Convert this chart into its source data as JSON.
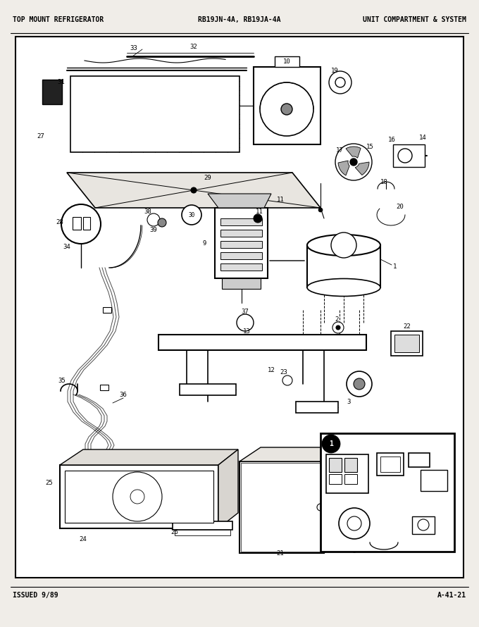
{
  "title_left": "TOP MOUNT REFRIGERATOR",
  "title_center": "RB19JN-4A, RB19JA-4A",
  "title_right": "UNIT COMPARTMENT & SYSTEM",
  "footer_left": "ISSUED 9/89",
  "footer_right": "A-41-21",
  "bg_color": "#f0ede8",
  "border_color": "#000000",
  "text_color": "#000000",
  "fig_width": 6.8,
  "fig_height": 8.9,
  "dpi": 100
}
